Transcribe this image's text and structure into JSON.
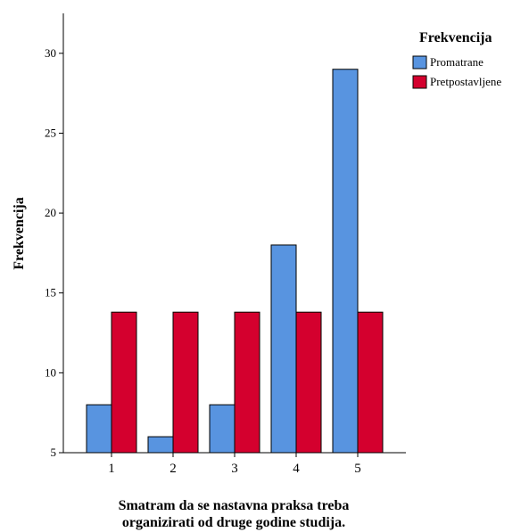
{
  "chart_data": {
    "type": "bar",
    "categories": [
      "1",
      "2",
      "3",
      "4",
      "5"
    ],
    "series": [
      {
        "name": "Promatrane",
        "values": [
          8,
          6,
          8,
          18,
          29
        ],
        "color": "#5894e0"
      },
      {
        "name": "Pretpostavljene",
        "values": [
          13.8,
          13.8,
          13.8,
          13.8,
          13.8
        ],
        "color": "#d4002e"
      }
    ],
    "ylabel": "Frekvencija",
    "xlabel": [
      "Smatram da se nastavna praksa treba",
      "organizirati od druge godine studija."
    ],
    "yticks": [
      5,
      10,
      15,
      20,
      25,
      30
    ],
    "ylim": [
      5,
      32.5
    ],
    "legend_title": "Frekvencija",
    "legend_position": "top-right",
    "grid": false
  }
}
